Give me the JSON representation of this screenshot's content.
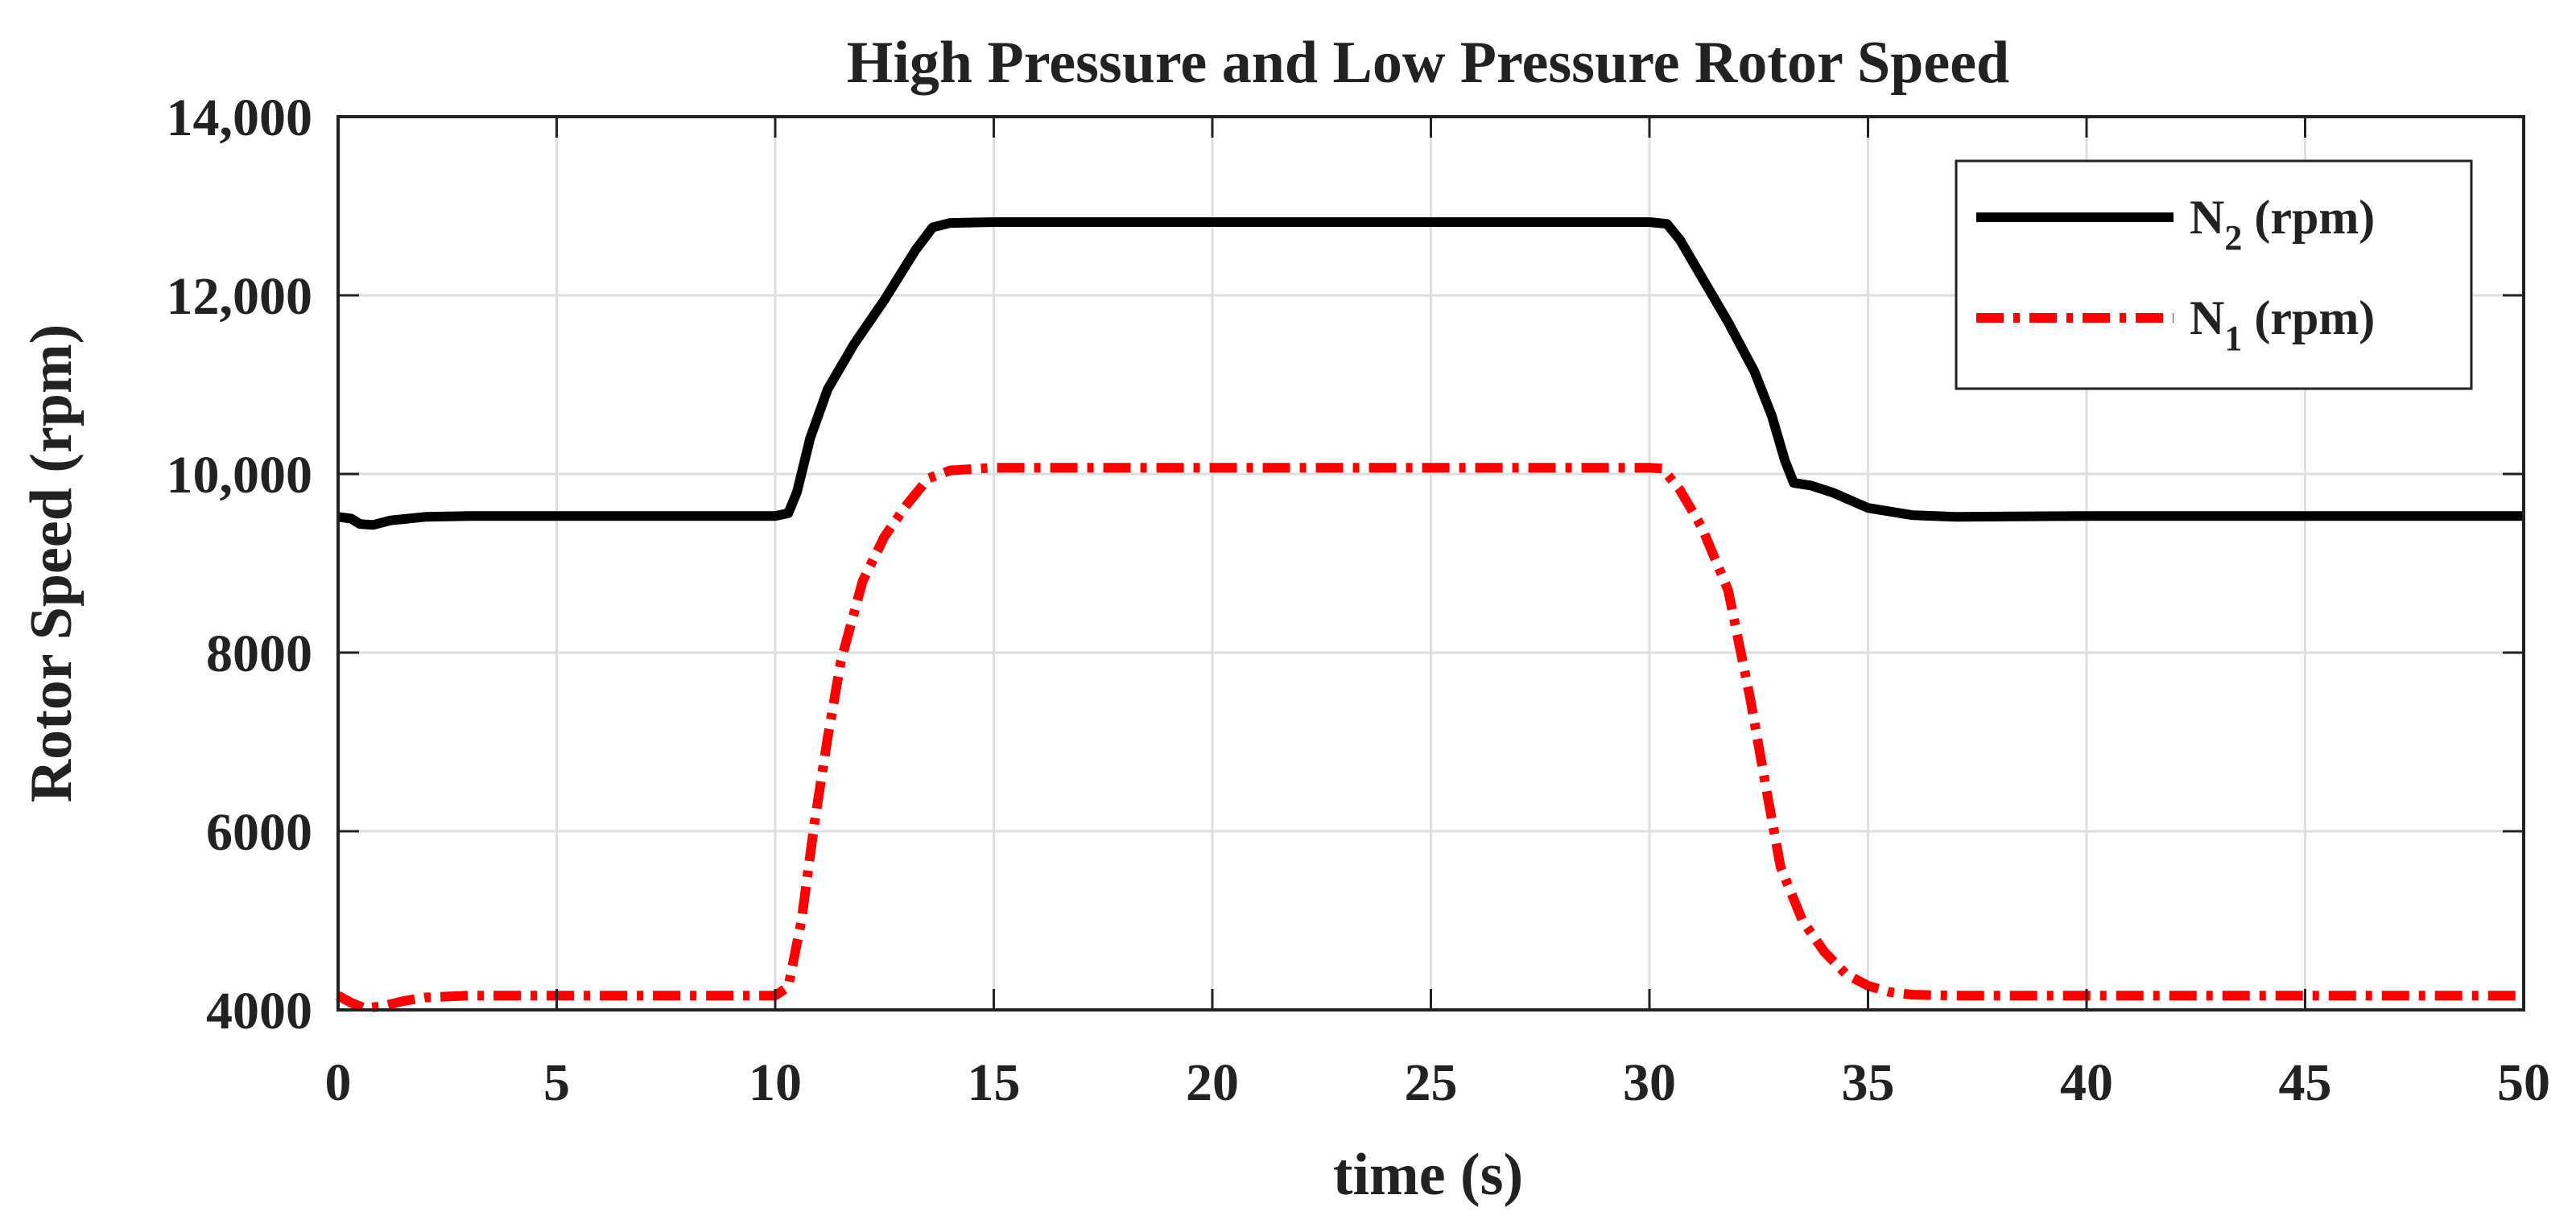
{
  "chart_data": {
    "type": "line",
    "title": "High Pressure and Low Pressure Rotor Speed",
    "xlabel": "time (s)",
    "ylabel": "Rotor Speed (rpm)",
    "xlim": [
      0,
      50
    ],
    "ylim": [
      4000,
      14000
    ],
    "grid": true,
    "legend_position": "top-right",
    "x_ticks": [
      0,
      5,
      10,
      15,
      20,
      25,
      30,
      35,
      40,
      45,
      50
    ],
    "x_tick_labels": [
      "0",
      "5",
      "10",
      "15",
      "20",
      "25",
      "30",
      "35",
      "40",
      "45",
      "50"
    ],
    "y_ticks": [
      4000,
      6000,
      8000,
      10000,
      12000,
      14000
    ],
    "y_tick_labels": [
      "4000",
      "6000",
      "8000",
      "10,000",
      "12,000",
      "14,000"
    ],
    "series": [
      {
        "name": "N2 (rpm)",
        "legend_main": "N",
        "legend_sub": "2",
        "legend_suffix": " (rpm)",
        "color": "#000000",
        "dash": "solid",
        "points": [
          [
            0,
            9520
          ],
          [
            0.3,
            9500
          ],
          [
            0.5,
            9440
          ],
          [
            0.8,
            9430
          ],
          [
            1.2,
            9480
          ],
          [
            2,
            9520
          ],
          [
            3,
            9530
          ],
          [
            5,
            9530
          ],
          [
            8,
            9530
          ],
          [
            10,
            9530
          ],
          [
            10.3,
            9560
          ],
          [
            10.5,
            9800
          ],
          [
            10.8,
            10400
          ],
          [
            11.2,
            10950
          ],
          [
            11.8,
            11450
          ],
          [
            12.5,
            11950
          ],
          [
            13.2,
            12500
          ],
          [
            13.6,
            12760
          ],
          [
            14,
            12810
          ],
          [
            15,
            12820
          ],
          [
            20,
            12820
          ],
          [
            25,
            12820
          ],
          [
            30,
            12820
          ],
          [
            30.4,
            12800
          ],
          [
            30.7,
            12620
          ],
          [
            31.2,
            12200
          ],
          [
            31.8,
            11700
          ],
          [
            32.4,
            11150
          ],
          [
            32.8,
            10650
          ],
          [
            33.1,
            10150
          ],
          [
            33.3,
            9900
          ],
          [
            33.7,
            9870
          ],
          [
            34.2,
            9790
          ],
          [
            35,
            9620
          ],
          [
            36,
            9540
          ],
          [
            37,
            9520
          ],
          [
            40,
            9530
          ],
          [
            45,
            9530
          ],
          [
            50,
            9530
          ]
        ]
      },
      {
        "name": "N1 (rpm)",
        "legend_main": "N",
        "legend_sub": "1",
        "legend_suffix": " (rpm)",
        "color": "#ff0000",
        "dash": "dashdot",
        "points": [
          [
            0,
            4160
          ],
          [
            0.3,
            4080
          ],
          [
            0.6,
            4020
          ],
          [
            1,
            4040
          ],
          [
            1.5,
            4100
          ],
          [
            2,
            4140
          ],
          [
            3,
            4160
          ],
          [
            5,
            4160
          ],
          [
            8,
            4160
          ],
          [
            10,
            4160
          ],
          [
            10.3,
            4260
          ],
          [
            10.6,
            5000
          ],
          [
            10.9,
            6100
          ],
          [
            11.2,
            7050
          ],
          [
            11.5,
            7900
          ],
          [
            12,
            8800
          ],
          [
            12.5,
            9300
          ],
          [
            13,
            9650
          ],
          [
            13.5,
            9950
          ],
          [
            14,
            10040
          ],
          [
            15,
            10070
          ],
          [
            20,
            10070
          ],
          [
            25,
            10070
          ],
          [
            30,
            10070
          ],
          [
            30.3,
            10060
          ],
          [
            30.7,
            9820
          ],
          [
            31.2,
            9400
          ],
          [
            31.8,
            8700
          ],
          [
            32.3,
            7500
          ],
          [
            32.7,
            6400
          ],
          [
            33,
            5600
          ],
          [
            33.5,
            5000
          ],
          [
            34,
            4650
          ],
          [
            34.5,
            4400
          ],
          [
            35,
            4270
          ],
          [
            35.5,
            4200
          ],
          [
            36,
            4170
          ],
          [
            37,
            4160
          ],
          [
            40,
            4160
          ],
          [
            45,
            4160
          ],
          [
            50,
            4160
          ]
        ]
      }
    ]
  }
}
